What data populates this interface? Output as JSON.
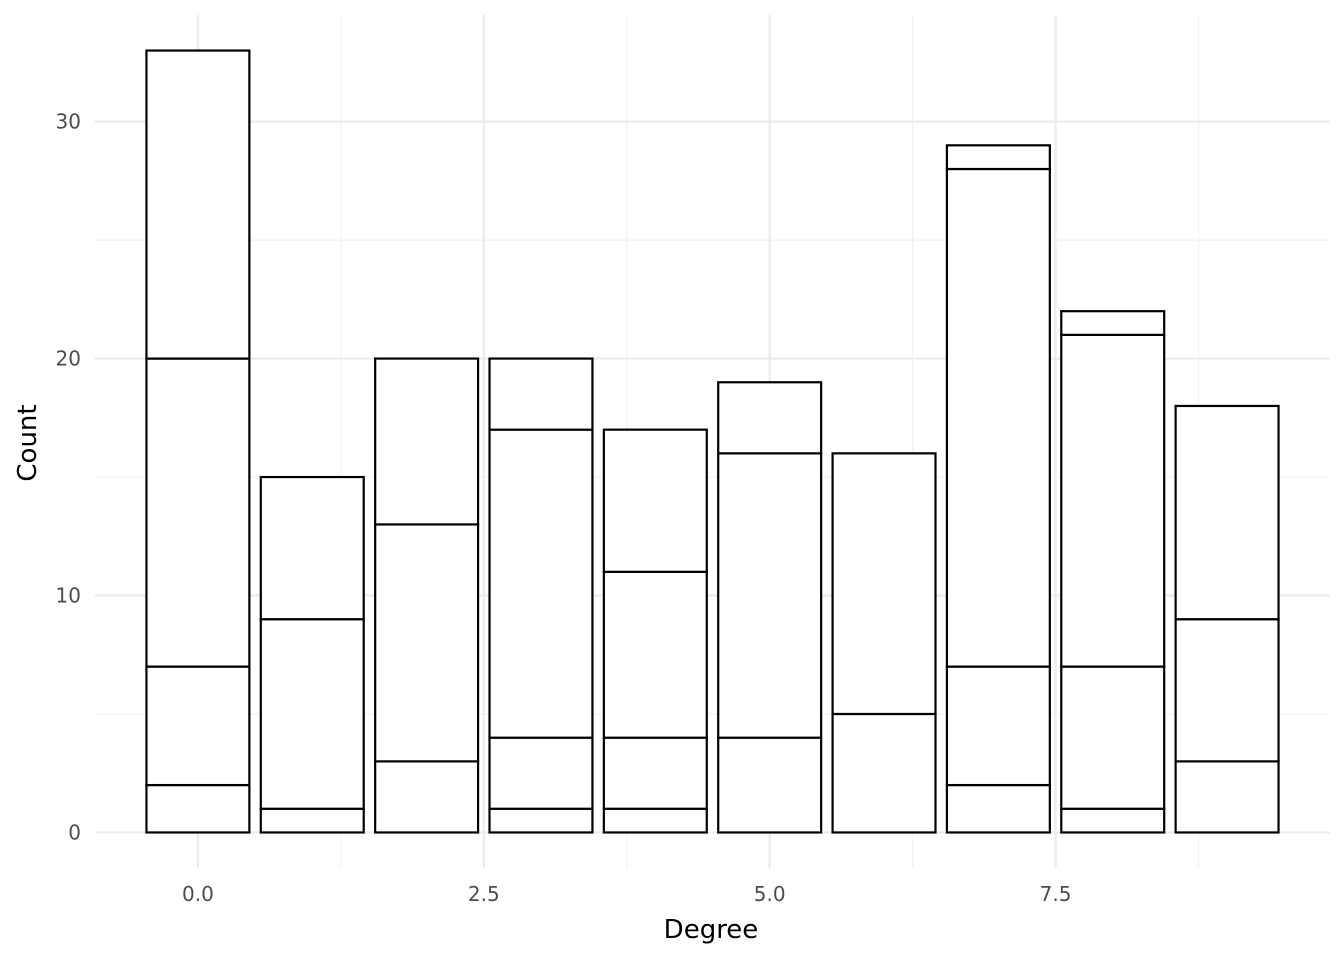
{
  "chart_data": {
    "type": "bar",
    "stacked": true,
    "xlabel": "Degree",
    "ylabel": "Count",
    "xlim": [
      -0.9,
      9.9
    ],
    "ylim": [
      -1.5,
      34.5
    ],
    "x_ticks": [
      0.0,
      2.5,
      5.0,
      7.5
    ],
    "x_tick_labels": [
      "0.0",
      "2.5",
      "5.0",
      "7.5"
    ],
    "y_ticks": [
      0,
      10,
      20,
      30
    ],
    "y_tick_labels": [
      "0",
      "10",
      "20",
      "30"
    ],
    "grid": true,
    "fill_color": "#ffffff",
    "outline_color": "#000000",
    "bars": [
      {
        "x": 0,
        "segments": [
          2,
          5,
          13,
          13
        ]
      },
      {
        "x": 1,
        "segments": [
          1,
          8,
          6
        ]
      },
      {
        "x": 2,
        "segments": [
          3,
          10,
          7
        ]
      },
      {
        "x": 3,
        "segments": [
          1,
          3,
          13,
          3
        ]
      },
      {
        "x": 4,
        "segments": [
          1,
          3,
          7,
          6
        ]
      },
      {
        "x": 5,
        "segments": [
          4,
          12,
          3
        ]
      },
      {
        "x": 6,
        "segments": [
          5,
          11
        ]
      },
      {
        "x": 7,
        "segments": [
          2,
          5,
          21,
          1
        ]
      },
      {
        "x": 8,
        "segments": [
          1,
          6,
          14,
          1
        ]
      },
      {
        "x": 9,
        "segments": [
          3,
          6,
          9
        ]
      }
    ]
  }
}
